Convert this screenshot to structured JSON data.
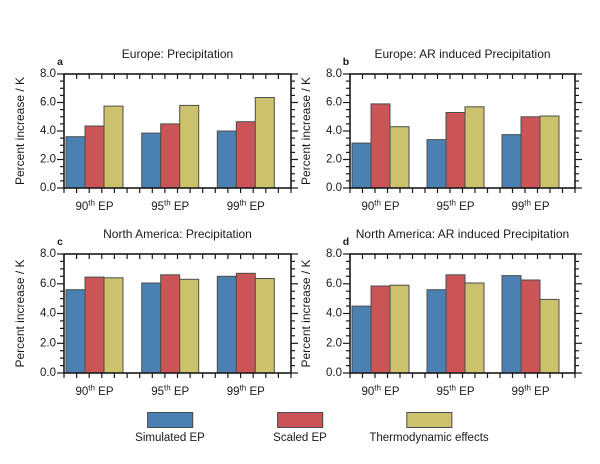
{
  "figure": {
    "background": "#ffffff",
    "frame_color": "#1a1a1a",
    "bar_border_color": "#4d4d4d"
  },
  "legend": {
    "items": [
      {
        "label": "Simulated EP",
        "color": "#4A80B2"
      },
      {
        "label": "Scaled EP",
        "color": "#CB5457"
      },
      {
        "label": "Thermodynamic effects",
        "color": "#CCC16C"
      }
    ]
  },
  "chart_data": [
    {
      "type": "bar",
      "panel_letter": "a",
      "title": "Europe: Precipitation",
      "xlabel": "",
      "ylabel": "Percent increase / K",
      "ylim": [
        0,
        8
      ],
      "yticks": [
        0,
        2,
        4,
        6,
        8
      ],
      "y_minor_step": 0.5,
      "grid": false,
      "categories": [
        "90th EP",
        "95th EP",
        "99th EP"
      ],
      "series": [
        {
          "name": "Simulated EP",
          "values": [
            3.6,
            3.85,
            4.0
          ]
        },
        {
          "name": "Scaled EP",
          "values": [
            4.35,
            4.5,
            4.65
          ]
        },
        {
          "name": "Thermodynamic effects",
          "values": [
            5.75,
            5.8,
            6.35
          ]
        }
      ]
    },
    {
      "type": "bar",
      "panel_letter": "b",
      "title": "Europe: AR induced Precipitation",
      "xlabel": "",
      "ylabel": "Percent increase / K",
      "ylim": [
        0,
        8
      ],
      "yticks": [
        0,
        2,
        4,
        6,
        8
      ],
      "y_minor_step": 0.5,
      "grid": false,
      "categories": [
        "90th EP",
        "95th EP",
        "99th EP"
      ],
      "series": [
        {
          "name": "Simulated EP",
          "values": [
            3.15,
            3.4,
            3.75
          ]
        },
        {
          "name": "Scaled EP",
          "values": [
            5.9,
            5.3,
            5.0
          ]
        },
        {
          "name": "Thermodynamic effects",
          "values": [
            4.3,
            5.7,
            5.05
          ]
        }
      ]
    },
    {
      "type": "bar",
      "panel_letter": "c",
      "title": "North America: Precipitation",
      "xlabel": "",
      "ylabel": "Percent increase / K",
      "ylim": [
        0,
        8
      ],
      "yticks": [
        0,
        2,
        4,
        6,
        8
      ],
      "y_minor_step": 0.5,
      "grid": false,
      "categories": [
        "90th EP",
        "95th EP",
        "99th EP"
      ],
      "series": [
        {
          "name": "Simulated EP",
          "values": [
            5.6,
            6.05,
            6.5
          ]
        },
        {
          "name": "Scaled EP",
          "values": [
            6.45,
            6.6,
            6.7
          ]
        },
        {
          "name": "Thermodynamic effects",
          "values": [
            6.4,
            6.3,
            6.35
          ]
        }
      ]
    },
    {
      "type": "bar",
      "panel_letter": "d",
      "title": "North America: AR induced Precipitation",
      "xlabel": "",
      "ylabel": "Percent increase / K",
      "ylim": [
        0,
        8
      ],
      "yticks": [
        0,
        2,
        4,
        6,
        8
      ],
      "y_minor_step": 0.5,
      "grid": false,
      "categories": [
        "90th EP",
        "95th EP",
        "99th EP"
      ],
      "series": [
        {
          "name": "Simulated EP",
          "values": [
            4.5,
            5.6,
            6.55
          ]
        },
        {
          "name": "Scaled EP",
          "values": [
            5.85,
            6.6,
            6.25
          ]
        },
        {
          "name": "Thermodynamic effects",
          "values": [
            5.9,
            6.05,
            4.95
          ]
        }
      ]
    }
  ]
}
